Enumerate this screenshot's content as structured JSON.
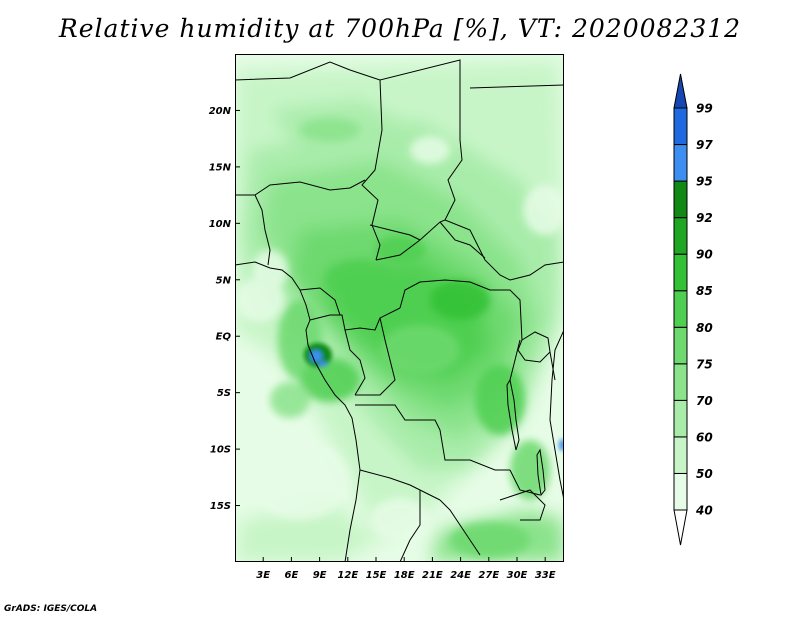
{
  "title": "Relative humidity at 700hPa [%], VT: 2020082312",
  "credit": "GrADS: IGES/COLA",
  "map": {
    "lon_range": [
      0,
      35
    ],
    "lat_range": [
      -20,
      25
    ],
    "lat_ticks": [
      {
        "value": 20,
        "label": "20N"
      },
      {
        "value": 15,
        "label": "15N"
      },
      {
        "value": 10,
        "label": "10N"
      },
      {
        "value": 5,
        "label": "5N"
      },
      {
        "value": 0,
        "label": "EQ"
      },
      {
        "value": -5,
        "label": "5S"
      },
      {
        "value": -10,
        "label": "10S"
      },
      {
        "value": -15,
        "label": "15S"
      }
    ],
    "lon_ticks": [
      {
        "value": 3,
        "label": "3E"
      },
      {
        "value": 6,
        "label": "6E"
      },
      {
        "value": 9,
        "label": "9E"
      },
      {
        "value": 12,
        "label": "12E"
      },
      {
        "value": 15,
        "label": "15E"
      },
      {
        "value": 18,
        "label": "18E"
      },
      {
        "value": 21,
        "label": "21E"
      },
      {
        "value": 24,
        "label": "24E"
      },
      {
        "value": 27,
        "label": "27E"
      },
      {
        "value": 30,
        "label": "30E"
      },
      {
        "value": 33,
        "label": "33E"
      }
    ]
  },
  "colorbar": {
    "levels": [
      "40",
      "50",
      "60",
      "70",
      "75",
      "80",
      "85",
      "90",
      "92",
      "95",
      "97",
      "99"
    ],
    "colors": [
      "#ffffff",
      "#e6fce6",
      "#c8f5c8",
      "#a9ecaa",
      "#8be38c",
      "#6dd96e",
      "#4fcf51",
      "#33c135",
      "#1fa622",
      "#108a14",
      "#3c8ff0",
      "#1f6ae0",
      "#1447b4"
    ]
  }
}
